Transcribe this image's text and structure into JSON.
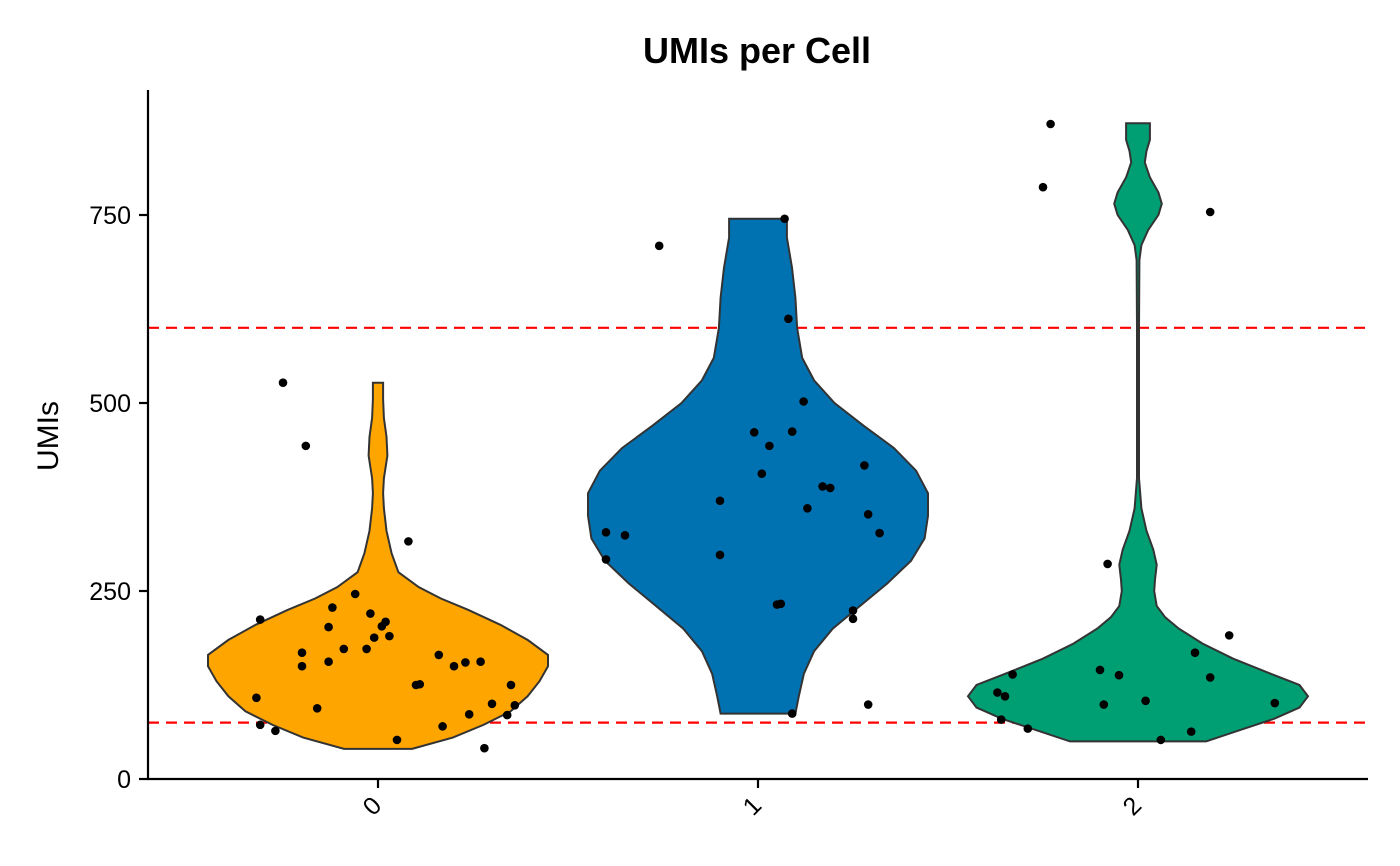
{
  "chart_data": {
    "type": "violin",
    "title": "UMIs per Cell",
    "xlabel": "",
    "ylabel": "UMIs",
    "categories": [
      "0",
      "1",
      "2"
    ],
    "colors": [
      "#FFA500",
      "#0072B2",
      "#009E73"
    ],
    "ylim": [
      0,
      910
    ],
    "yticks": [
      0,
      250,
      500,
      750
    ],
    "ytick_labels": [
      "0",
      "250",
      "500",
      "750"
    ],
    "reference_lines": [
      75,
      600
    ],
    "reference_line_color": "#FF0000",
    "grid": false,
    "legend": "none",
    "violins": [
      {
        "category": "0",
        "ymin": 40,
        "ymax": 527,
        "profile": [
          [
            40,
            0.2
          ],
          [
            55,
            0.44
          ],
          [
            72,
            0.62
          ],
          [
            90,
            0.78
          ],
          [
            110,
            0.88
          ],
          [
            130,
            0.95
          ],
          [
            150,
            1.0
          ],
          [
            165,
            1.0
          ],
          [
            185,
            0.88
          ],
          [
            205,
            0.72
          ],
          [
            225,
            0.53
          ],
          [
            240,
            0.37
          ],
          [
            255,
            0.24
          ],
          [
            275,
            0.12
          ],
          [
            300,
            0.08
          ],
          [
            330,
            0.05
          ],
          [
            360,
            0.035
          ],
          [
            380,
            0.03
          ],
          [
            400,
            0.035
          ],
          [
            430,
            0.055
          ],
          [
            455,
            0.05
          ],
          [
            480,
            0.035
          ],
          [
            505,
            0.03
          ],
          [
            527,
            0.03
          ]
        ],
        "points": [
          [
            -0.31,
            212
          ],
          [
            -0.25,
            527
          ],
          [
            -0.19,
            443
          ],
          [
            -0.32,
            108
          ],
          [
            -0.31,
            72
          ],
          [
            -0.27,
            64
          ],
          [
            -0.2,
            150
          ],
          [
            -0.2,
            168
          ],
          [
            -0.16,
            94
          ],
          [
            -0.13,
            202
          ],
          [
            -0.13,
            156
          ],
          [
            -0.12,
            228
          ],
          [
            -0.09,
            173
          ],
          [
            -0.06,
            246
          ],
          [
            -0.03,
            173
          ],
          [
            -0.02,
            220
          ],
          [
            -0.01,
            188
          ],
          [
            0.01,
            203
          ],
          [
            0.02,
            209
          ],
          [
            0.03,
            190
          ],
          [
            0.05,
            52
          ],
          [
            0.08,
            316
          ],
          [
            0.1,
            125
          ],
          [
            0.11,
            126
          ],
          [
            0.16,
            165
          ],
          [
            0.17,
            70
          ],
          [
            0.2,
            150
          ],
          [
            0.23,
            155
          ],
          [
            0.24,
            86
          ],
          [
            0.27,
            156
          ],
          [
            0.28,
            41
          ],
          [
            0.3,
            100
          ],
          [
            0.34,
            85
          ],
          [
            0.35,
            125
          ],
          [
            0.36,
            98
          ]
        ]
      },
      {
        "category": "1",
        "ymin": 87,
        "ymax": 745,
        "profile": [
          [
            87,
            0.22
          ],
          [
            110,
            0.24
          ],
          [
            140,
            0.27
          ],
          [
            170,
            0.33
          ],
          [
            200,
            0.44
          ],
          [
            230,
            0.6
          ],
          [
            260,
            0.76
          ],
          [
            290,
            0.9
          ],
          [
            320,
            0.98
          ],
          [
            350,
            1.0
          ],
          [
            380,
            1.0
          ],
          [
            410,
            0.93
          ],
          [
            440,
            0.8
          ],
          [
            470,
            0.62
          ],
          [
            500,
            0.45
          ],
          [
            530,
            0.33
          ],
          [
            560,
            0.26
          ],
          [
            600,
            0.23
          ],
          [
            640,
            0.22
          ],
          [
            680,
            0.2
          ],
          [
            720,
            0.17
          ],
          [
            745,
            0.17
          ]
        ],
        "points": [
          [
            -0.4,
            292
          ],
          [
            -0.4,
            328
          ],
          [
            -0.35,
            324
          ],
          [
            -0.26,
            709
          ],
          [
            -0.1,
            298
          ],
          [
            -0.1,
            370
          ],
          [
            -0.01,
            461
          ],
          [
            0.01,
            406
          ],
          [
            0.03,
            443
          ],
          [
            0.05,
            232
          ],
          [
            0.06,
            233
          ],
          [
            0.07,
            745
          ],
          [
            0.08,
            612
          ],
          [
            0.09,
            87
          ],
          [
            0.09,
            462
          ],
          [
            0.12,
            502
          ],
          [
            0.13,
            360
          ],
          [
            0.17,
            389
          ],
          [
            0.19,
            387
          ],
          [
            0.25,
            224
          ],
          [
            0.25,
            213
          ],
          [
            0.28,
            417
          ],
          [
            0.29,
            352
          ],
          [
            0.29,
            99
          ],
          [
            0.32,
            327
          ]
        ]
      },
      {
        "category": "2",
        "ymin": 50,
        "ymax": 872,
        "profile": [
          [
            50,
            0.4
          ],
          [
            65,
            0.6
          ],
          [
            80,
            0.8
          ],
          [
            95,
            0.95
          ],
          [
            110,
            1.0
          ],
          [
            125,
            0.95
          ],
          [
            140,
            0.78
          ],
          [
            160,
            0.56
          ],
          [
            180,
            0.38
          ],
          [
            200,
            0.24
          ],
          [
            215,
            0.16
          ],
          [
            230,
            0.11
          ],
          [
            250,
            0.095
          ],
          [
            265,
            0.1
          ],
          [
            285,
            0.11
          ],
          [
            305,
            0.09
          ],
          [
            330,
            0.05
          ],
          [
            360,
            0.02
          ],
          [
            400,
            0.006
          ],
          [
            500,
            0.006
          ],
          [
            600,
            0.006
          ],
          [
            690,
            0.008
          ],
          [
            710,
            0.02
          ],
          [
            730,
            0.06
          ],
          [
            750,
            0.12
          ],
          [
            765,
            0.14
          ],
          [
            780,
            0.12
          ],
          [
            800,
            0.07
          ],
          [
            820,
            0.04
          ],
          [
            835,
            0.05
          ],
          [
            850,
            0.07
          ],
          [
            860,
            0.07
          ],
          [
            872,
            0.07
          ]
        ],
        "points": [
          [
            -0.37,
            115
          ],
          [
            -0.35,
            110
          ],
          [
            -0.36,
            79
          ],
          [
            -0.33,
            139
          ],
          [
            -0.29,
            67
          ],
          [
            -0.25,
            787
          ],
          [
            -0.23,
            871
          ],
          [
            -0.1,
            145
          ],
          [
            -0.09,
            99
          ],
          [
            -0.08,
            286
          ],
          [
            -0.05,
            138
          ],
          [
            0.02,
            104
          ],
          [
            0.06,
            52
          ],
          [
            0.14,
            63
          ],
          [
            0.15,
            168
          ],
          [
            0.19,
            135
          ],
          [
            0.19,
            754
          ],
          [
            0.24,
            191
          ],
          [
            0.36,
            101
          ]
        ]
      }
    ]
  }
}
